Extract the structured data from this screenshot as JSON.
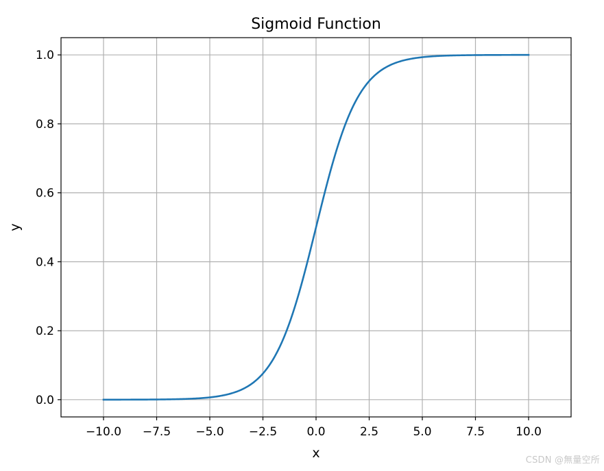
{
  "chart_data": {
    "type": "line",
    "title": "Sigmoid Function",
    "xlabel": "x",
    "ylabel": "y",
    "xlim": [
      -12.0,
      12.0
    ],
    "ylim": [
      -0.05,
      1.05
    ],
    "grid": true,
    "legend": "none",
    "x_ticks": [
      -10.0,
      -7.5,
      -5.0,
      -2.5,
      0.0,
      2.5,
      5.0,
      7.5,
      10.0
    ],
    "x_tick_labels": [
      "−10.0",
      "−7.5",
      "−5.0",
      "−2.5",
      "0.0",
      "2.5",
      "5.0",
      "7.5",
      "10.0"
    ],
    "y_ticks": [
      0.0,
      0.2,
      0.4,
      0.6,
      0.8,
      1.0
    ],
    "y_tick_labels": [
      "0.0",
      "0.2",
      "0.4",
      "0.6",
      "0.8",
      "1.0"
    ],
    "series": [
      {
        "color": "#1f77b4",
        "x": [
          -10,
          -9,
          -8,
          -7,
          -6,
          -5,
          -4.5,
          -4,
          -3.5,
          -3,
          -2.5,
          -2,
          -1.5,
          -1,
          -0.5,
          0,
          0.5,
          1,
          1.5,
          2,
          2.5,
          3,
          3.5,
          4,
          4.5,
          5,
          6,
          7,
          8,
          9,
          10
        ],
        "y": [
          4.54e-05,
          0.000123,
          0.000335,
          0.000911,
          0.00247,
          0.00669,
          0.011,
          0.018,
          0.0293,
          0.0474,
          0.0759,
          0.1192,
          0.1824,
          0.2689,
          0.3775,
          0.5,
          0.6225,
          0.7311,
          0.8176,
          0.8808,
          0.9241,
          0.9526,
          0.9707,
          0.982,
          0.989,
          0.99331,
          0.99753,
          0.99909,
          0.999665,
          0.999877,
          0.9999546
        ]
      }
    ]
  },
  "watermark": "CSDN @無量空所"
}
